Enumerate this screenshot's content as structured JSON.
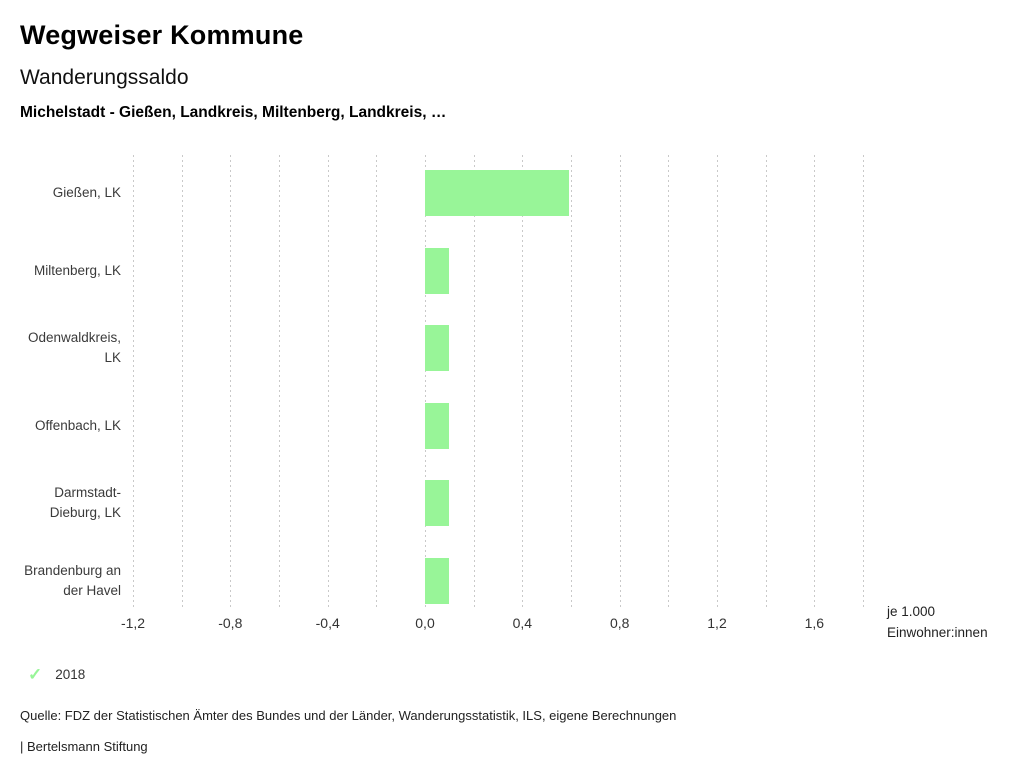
{
  "header": {
    "app_title": "Wegweiser Kommune",
    "chart_title": "Wanderungssaldo",
    "chart_subtitle": "Michelstadt - Gießen, Landkreis, Miltenberg, Landkreis, …"
  },
  "chart_data": {
    "type": "bar",
    "orientation": "horizontal",
    "title": "Wanderungssaldo",
    "categories": [
      "Gießen, LK",
      "Miltenberg, LK",
      "Odenwaldkreis, LK",
      "Offenbach, LK",
      "Darmstadt-Dieburg, LK",
      "Brandenburg an der Havel"
    ],
    "series": [
      {
        "name": "2018",
        "values": [
          0.59,
          0.1,
          0.1,
          0.1,
          0.1,
          0.1
        ]
      }
    ],
    "bar_color": "#98f598",
    "xlim": [
      -1.2,
      1.8
    ],
    "grid_step": 0.2,
    "grid": true,
    "ticks": [
      {
        "value": -1.2,
        "label": "-1,2"
      },
      {
        "value": -0.8,
        "label": "-0,8"
      },
      {
        "value": -0.4,
        "label": "-0,4"
      },
      {
        "value": 0.0,
        "label": "0,0"
      },
      {
        "value": 0.4,
        "label": "0,4"
      },
      {
        "value": 0.8,
        "label": "0,8"
      },
      {
        "value": 1.2,
        "label": "1,2"
      },
      {
        "value": 1.6,
        "label": "1,6"
      }
    ],
    "unit_label": "je 1.000 Einwohner:innen"
  },
  "legend": {
    "items": [
      {
        "label": "2018",
        "color": "#98f598",
        "icon": "check"
      }
    ]
  },
  "footer": {
    "source": "Quelle: FDZ der Statistischen Ämter des Bundes und der Länder, Wanderungsstatistik, ILS, eigene Berechnungen",
    "attribution": "| Bertelsmann Stiftung"
  }
}
